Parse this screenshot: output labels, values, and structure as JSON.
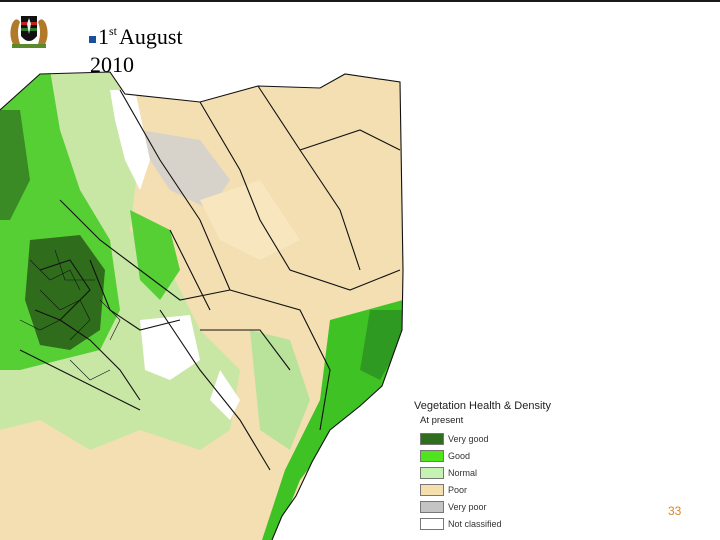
{
  "slide": {
    "date_prefix": "1",
    "date_suffix": "st",
    "date_month": "August",
    "year": "2010",
    "page_number": "33"
  },
  "legend": {
    "title": "Vegetation Health & Density",
    "subtitle": "At present",
    "items": [
      {
        "label": "Very good",
        "color": "#2e6e1c"
      },
      {
        "label": "Good",
        "color": "#4fe41c"
      },
      {
        "label": "Normal",
        "color": "#c6f2b4"
      },
      {
        "label": "Poor",
        "color": "#f5dfad"
      },
      {
        "label": "Very poor",
        "color": "#c4c4c4"
      },
      {
        "label": "Not classified",
        "color": "#ffffff"
      }
    ]
  },
  "colors": {
    "bullet": "#1b4f9c",
    "page_number": "#d8872b"
  },
  "icons": {
    "logo": "coat-of-arms-icon"
  }
}
